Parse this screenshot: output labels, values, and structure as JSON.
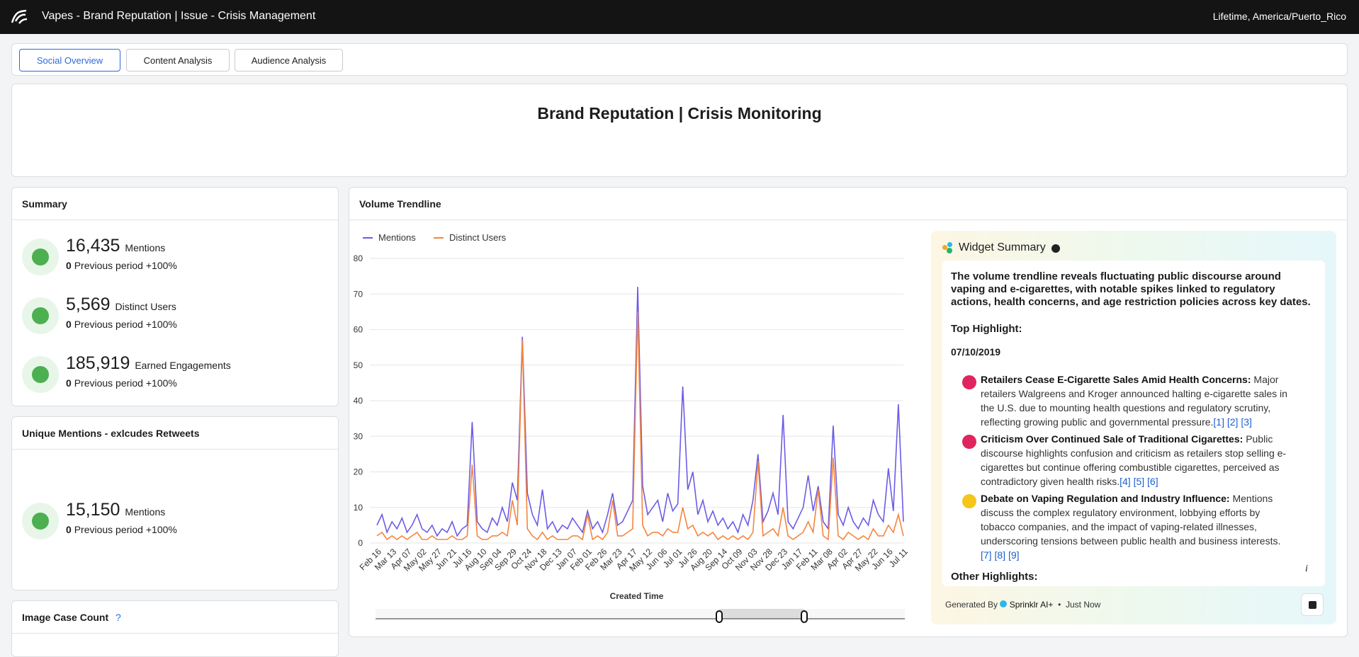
{
  "header": {
    "title": "Vapes - Brand Reputation | Issue - Crisis Management",
    "timezone": "Lifetime, America/Puerto_Rico"
  },
  "tabs": [
    "Social Overview",
    "Content Analysis",
    "Audience Analysis"
  ],
  "dashboard_title": "Brand Reputation | Crisis Monitoring",
  "summary": {
    "title": "Summary",
    "metrics": [
      {
        "value": "16,435",
        "label": "Mentions",
        "previous": "0",
        "previous_label": "Previous period",
        "change": "+100%"
      },
      {
        "value": "5,569",
        "label": "Distinct Users",
        "previous": "0",
        "previous_label": "Previous period",
        "change": "+100%"
      },
      {
        "value": "185,919",
        "label": "Earned Engagements",
        "previous": "0",
        "previous_label": "Previous period",
        "change": "+100%"
      }
    ]
  },
  "unique_mentions": {
    "title": "Unique Mentions - exlcudes Retweets",
    "value": "15,150",
    "label": "Mentions",
    "previous": "0",
    "previous_label": "Previous period",
    "change": "+100%"
  },
  "image_case_count": {
    "title": "Image Case Count",
    "help": "?"
  },
  "volume": {
    "title": "Volume Trendline"
  },
  "chart_data": {
    "type": "line",
    "xlabel": "Created Time",
    "categories": [
      "Feb 16",
      null,
      null,
      "Mar 13",
      null,
      null,
      "Apr 07",
      null,
      null,
      "May 02",
      null,
      null,
      "May 27",
      null,
      null,
      "Jun 21",
      null,
      null,
      "Jul 16",
      null,
      null,
      "Aug 10",
      null,
      null,
      "Sep 04",
      null,
      null,
      "Sep 29",
      null,
      null,
      "Oct 24",
      null,
      null,
      "Nov 18",
      null,
      null,
      "Dec 13",
      null,
      null,
      "Jan 07",
      null,
      null,
      "Feb 01",
      null,
      null,
      "Feb 26",
      null,
      null,
      "Mar 23",
      null,
      null,
      "Apr 17",
      null,
      null,
      "May 12",
      null,
      null,
      "Jun 06",
      null,
      null,
      "Jul 01",
      null,
      null,
      "Jul 26",
      null,
      null,
      "Aug 20",
      null,
      null,
      "Sep 14",
      null,
      null,
      "Oct 09",
      null,
      null,
      "Nov 03",
      null,
      null,
      "Nov 28",
      null,
      null,
      "Dec 23",
      null,
      null,
      "Jan 17",
      null,
      null,
      "Feb 11",
      null,
      null,
      "Mar 08",
      null,
      null,
      "Apr 02",
      null,
      null,
      "Apr 27",
      null,
      null,
      "May 22",
      null,
      null,
      "Jun 16",
      null,
      null,
      "Jul 11"
    ],
    "series": [
      {
        "name": "Mentions",
        "color": "#6b5ce7",
        "values": [
          5,
          8,
          3,
          6,
          4,
          7,
          3,
          5,
          8,
          4,
          3,
          5,
          2,
          4,
          3,
          6,
          2,
          4,
          5,
          34,
          6,
          4,
          3,
          7,
          5,
          10,
          6,
          17,
          12,
          58,
          14,
          8,
          5,
          15,
          4,
          6,
          3,
          5,
          4,
          7,
          5,
          3,
          9,
          4,
          6,
          3,
          8,
          14,
          5,
          6,
          9,
          12,
          72,
          16,
          8,
          10,
          12,
          6,
          14,
          9,
          11,
          44,
          15,
          20,
          8,
          12,
          6,
          9,
          5,
          7,
          4,
          6,
          3,
          8,
          5,
          12,
          25,
          6,
          9,
          14,
          8,
          36,
          6,
          4,
          7,
          10,
          19,
          9,
          16,
          6,
          4,
          33,
          8,
          5,
          10,
          6,
          4,
          7,
          5,
          12,
          8,
          6,
          21,
          9,
          39,
          6
        ]
      },
      {
        "name": "Distinct Users",
        "color": "#f5853f",
        "values": [
          2,
          3,
          1,
          2,
          1,
          2,
          1,
          2,
          3,
          1,
          1,
          2,
          1,
          1,
          1,
          2,
          1,
          1,
          2,
          22,
          2,
          1,
          1,
          2,
          2,
          3,
          2,
          12,
          5,
          57,
          4,
          2,
          1,
          3,
          1,
          2,
          1,
          1,
          1,
          2,
          2,
          1,
          8,
          1,
          2,
          1,
          3,
          12,
          2,
          2,
          3,
          4,
          65,
          5,
          2,
          3,
          3,
          2,
          4,
          3,
          3,
          10,
          4,
          5,
          2,
          3,
          2,
          3,
          1,
          2,
          1,
          2,
          1,
          2,
          1,
          3,
          23,
          2,
          3,
          4,
          2,
          10,
          2,
          1,
          2,
          3,
          6,
          3,
          15,
          2,
          1,
          24,
          2,
          1,
          3,
          2,
          1,
          2,
          1,
          4,
          2,
          2,
          5,
          3,
          8,
          2
        ]
      }
    ],
    "ylim": [
      0,
      80
    ],
    "yticks": [
      0,
      10,
      20,
      30,
      40,
      50,
      60,
      70,
      80
    ],
    "grid": true,
    "legend": "top-left"
  },
  "widget_summary": {
    "title": "Widget Summary",
    "intro": "The volume trendline reveals fluctuating public discourse around vaping and e-cigarettes, with notable spikes linked to regulatory actions, health concerns, and age restriction policies across key dates.",
    "top_label": "Top Highlight:",
    "date": "07/10/2019",
    "items": [
      {
        "title": "Retailers Cease E-Cigarette Sales Amid Health Concerns:",
        "text": "Major retailers Walgreens and Kroger announced halting e-cigarette sales in the U.S. due to mounting health questions and regulatory scrutiny, reflecting growing public and governmental pressure.",
        "refs": [
          "[1]",
          "[2]",
          "[3]"
        ]
      },
      {
        "title": "Criticism Over Continued Sale of Traditional Cigarettes:",
        "text": "Public discourse highlights confusion and criticism as retailers stop selling e-cigarettes but continue offering combustible cigarettes, perceived as contradictory given health risks.",
        "refs": [
          "[4]",
          "[5]",
          "[6]"
        ]
      },
      {
        "title": "Debate on Vaping Regulation and Industry Influence:",
        "text": "Mentions discuss the complex regulatory environment, lobbying efforts by tobacco companies, and the impact of vaping-related illnesses, underscoring tensions between public health and business interests.",
        "refs": [
          "[7]",
          "[8]",
          "[9]"
        ]
      }
    ],
    "other_label": "Other Highlights:",
    "generated_by": "Generated By",
    "brand": "Sprinklr AI+",
    "time": "Just Now"
  }
}
